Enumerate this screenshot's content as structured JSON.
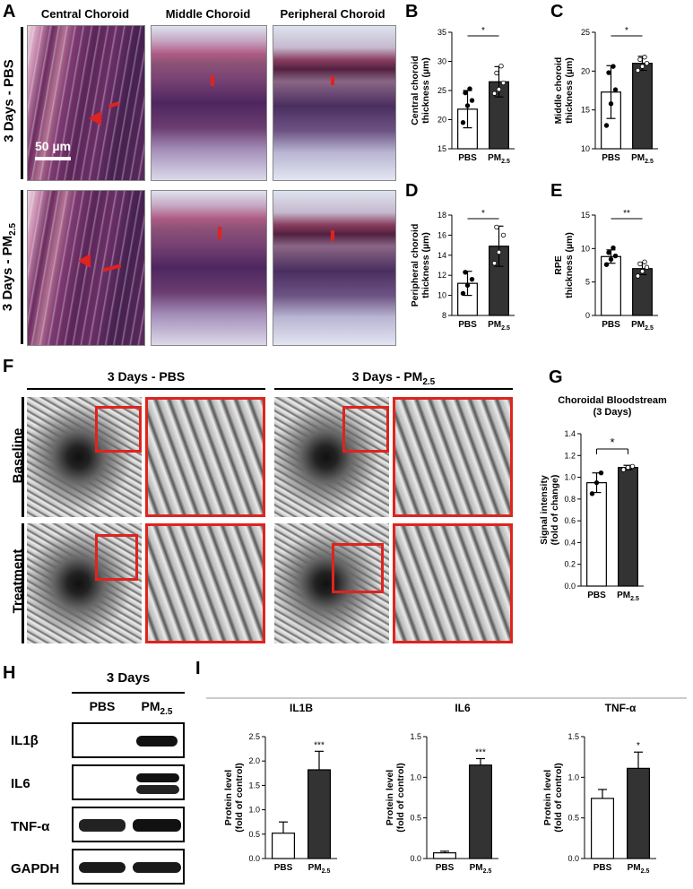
{
  "panels": {
    "A": "A",
    "B": "B",
    "C": "C",
    "D": "D",
    "E": "E",
    "F": "F",
    "G": "G",
    "H": "H",
    "I": "I"
  },
  "panelA": {
    "columns": [
      "Central Choroid",
      "Middle Choroid",
      "Peripheral Choroid"
    ],
    "row1_label": "3 Days - PBS",
    "row2_label": "3 Days - PM",
    "row2_sub": "2.5",
    "scalebar": "50 µm"
  },
  "panelF": {
    "col1": "3 Days - PBS",
    "col2": "3 Days - PM",
    "col2_sub": "2.5",
    "rows": [
      "Baseline",
      "Treatment"
    ]
  },
  "panelH": {
    "title": "3 Days",
    "cols": [
      "PBS",
      "PM"
    ],
    "col_sub": "2.5",
    "rows": [
      "IL1β",
      "IL6",
      "TNF-α",
      "GAPDH"
    ]
  },
  "chart_data": [
    {
      "id": "B",
      "type": "bar",
      "categories": [
        "PBS",
        "PM2.5"
      ],
      "values": [
        21.8,
        26.5
      ],
      "errors": [
        3.2,
        2.6
      ],
      "points": [
        [
          19.5,
          22.4,
          23.3,
          24.6,
          25.3
        ],
        [
          24.5,
          25.2,
          26.3,
          28.0,
          29.2
        ]
      ],
      "ylabel": [
        "Central choroid",
        "thickness (µm)"
      ],
      "ylim": [
        15,
        35
      ],
      "yticks": [
        15,
        20,
        25,
        30,
        35
      ],
      "sig": "*"
    },
    {
      "id": "C",
      "type": "bar",
      "categories": [
        "PBS",
        "PM2.5"
      ],
      "values": [
        17.3,
        21.0
      ],
      "errors": [
        3.4,
        0.9
      ],
      "points": [
        [
          13.0,
          15.8,
          17.6,
          19.8,
          20.6
        ],
        [
          20.1,
          20.6,
          21.0,
          21.5,
          21.8
        ]
      ],
      "ylabel": [
        "Middle choroid",
        "thickness (µm)"
      ],
      "ylim": [
        10,
        25
      ],
      "yticks": [
        10,
        15,
        20,
        25
      ],
      "sig": "*"
    },
    {
      "id": "D",
      "type": "bar",
      "categories": [
        "PBS",
        "PM2.5"
      ],
      "values": [
        11.2,
        14.9
      ],
      "errors": [
        1.2,
        2.0
      ],
      "points": [
        [
          10.2,
          11.0,
          11.6,
          12.3
        ],
        [
          13.2,
          14.3,
          16.0,
          16.8
        ]
      ],
      "ylabel": [
        "Peripheral choroid",
        "thickness (µm)"
      ],
      "ylim": [
        8,
        18
      ],
      "yticks": [
        8,
        10,
        12,
        14,
        16,
        18
      ],
      "sig": "*"
    },
    {
      "id": "E",
      "type": "bar",
      "categories": [
        "PBS",
        "PM2.5"
      ],
      "values": [
        8.8,
        7.0
      ],
      "errors": [
        1.0,
        0.9
      ],
      "points": [
        [
          7.6,
          8.4,
          8.9,
          9.4,
          10.1
        ],
        [
          5.9,
          6.6,
          7.2,
          7.7,
          8.0
        ]
      ],
      "ylabel": [
        "RPE",
        "thickness (µm)"
      ],
      "ylim": [
        0,
        15
      ],
      "yticks": [
        0,
        5,
        10,
        15
      ],
      "sig": "**"
    },
    {
      "id": "G",
      "type": "bar",
      "categories": [
        "PBS",
        "PM2.5"
      ],
      "values": [
        0.95,
        1.09
      ],
      "errors": [
        0.09,
        0.02
      ],
      "points": [
        [
          0.85,
          0.95,
          1.04
        ],
        [
          1.07,
          1.09,
          1.1
        ]
      ],
      "title": [
        "Choroidal Bloodstream",
        "(3 Days)"
      ],
      "ylabel": [
        "Signal intensity",
        "(fold of change)"
      ],
      "ylim": [
        0,
        1.4
      ],
      "yticks": [
        "0.0",
        "0.2",
        "0.4",
        "0.6",
        "0.8",
        "1.0",
        "1.2",
        "1.4"
      ],
      "sig": "*"
    },
    {
      "id": "I1",
      "type": "bar",
      "categories": [
        "PBS",
        "PM2.5"
      ],
      "values": [
        0.52,
        1.82
      ],
      "errors": [
        0.23,
        0.38
      ],
      "title": "IL1B",
      "ylabel": [
        "Protein level",
        "(fold of control)"
      ],
      "ylim": [
        0,
        2.5
      ],
      "yticks": [
        "0.0",
        "0.5",
        "1.0",
        "1.5",
        "2.0",
        "2.5"
      ],
      "sig": "***"
    },
    {
      "id": "I2",
      "type": "bar",
      "categories": [
        "PBS",
        "PM2.5"
      ],
      "values": [
        0.07,
        1.15
      ],
      "errors": [
        0.02,
        0.08
      ],
      "title": "IL6",
      "ylabel": [
        "Protein level",
        "(fold of control)"
      ],
      "ylim": [
        0,
        1.5
      ],
      "yticks": [
        "0.0",
        "0.5",
        "1.0",
        "1.5"
      ],
      "sig": "***"
    },
    {
      "id": "I3",
      "type": "bar",
      "categories": [
        "PBS",
        "PM2.5"
      ],
      "values": [
        0.74,
        1.11
      ],
      "errors": [
        0.11,
        0.2
      ],
      "title": "TNF-α",
      "ylabel": [
        "Protein level",
        "(fold of control)"
      ],
      "ylim": [
        0,
        1.5
      ],
      "yticks": [
        "0.0",
        "0.5",
        "1.0",
        "1.5"
      ],
      "sig": "*"
    }
  ],
  "colors": {
    "bar_pbs": "#ffffff",
    "bar_pm": "#333333",
    "red": "#e0231e"
  }
}
